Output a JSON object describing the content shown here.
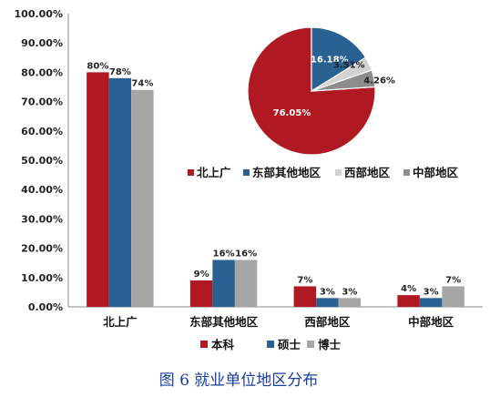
{
  "caption": "图 6  就业单位地区分布",
  "chart_data": [
    {
      "type": "bar",
      "categories": [
        "北上广",
        "东部其他地区",
        "西部地区",
        "中部地区"
      ],
      "series": [
        {
          "name": "本科",
          "color": "#b01822",
          "values": [
            80,
            9,
            7,
            4
          ],
          "labels": [
            "80%",
            "9%",
            "7%",
            "4%"
          ]
        },
        {
          "name": "硕士",
          "color": "#2a6193",
          "values": [
            78,
            16,
            3,
            3
          ],
          "labels": [
            "78%",
            "16%",
            "3%",
            "3%"
          ]
        },
        {
          "name": "博士",
          "color": "#a6a6a6",
          "values": [
            74,
            16,
            3,
            7
          ],
          "labels": [
            "74%",
            "16%",
            "3%",
            "7%"
          ]
        }
      ],
      "ylim": [
        0,
        100
      ],
      "yticks": [
        "0.00%",
        "10.00%",
        "20.00%",
        "30.00%",
        "40.00%",
        "50.00%",
        "60.00%",
        "70.00%",
        "80.00%",
        "90.00%",
        "100.00%"
      ],
      "grid": false,
      "legend": "bottom"
    },
    {
      "type": "pie",
      "slices": [
        {
          "name": "北上广",
          "value": 76.05,
          "label": "76.05%",
          "color": "#b01822"
        },
        {
          "name": "东部其他地区",
          "value": 16.18,
          "label": "16.18%",
          "color": "#2a6193"
        },
        {
          "name": "西部地区",
          "value": 3.51,
          "label": "3.51%",
          "color": "#d2d2d2"
        },
        {
          "name": "中部地区",
          "value": 4.26,
          "label": "4.26%",
          "color": "#8c8c8c"
        }
      ],
      "legend": "bottom"
    }
  ]
}
